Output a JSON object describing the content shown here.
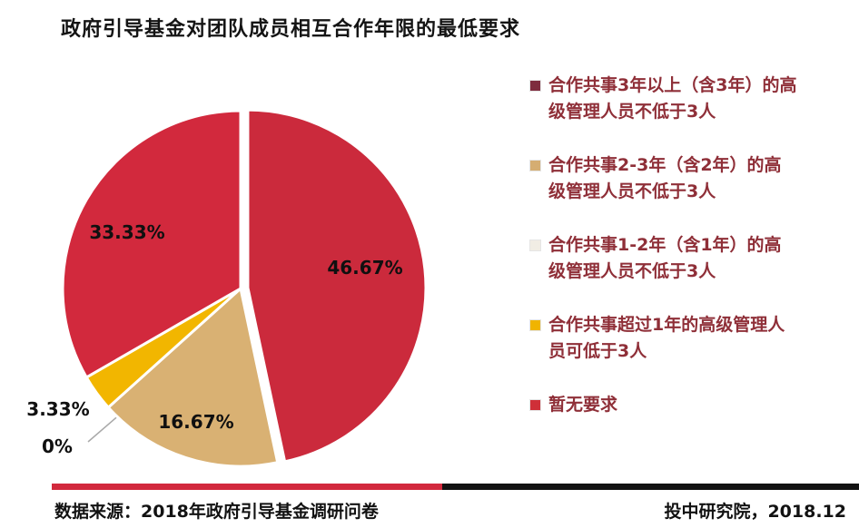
{
  "title": "政府引导基金对团队成员相互合作年限的最低要求",
  "chart_data": {
    "type": "pie",
    "title": "政府引导基金对团队成员相互合作年限的最低要求",
    "direction": "clockwise",
    "start_angle_deg_from_top": 0,
    "exploded_slice": 0,
    "slices": [
      {
        "label": "合作共事3年以上（含3年）的高级管理人员不低于3人",
        "value": 46.67,
        "display": "46.67%",
        "color": "#cb2a3c",
        "marker_color": "#7e2c3e"
      },
      {
        "label": "合作共事2-3年（含2年）的高级管理人员不低于3人",
        "value": 16.67,
        "display": "16.67%",
        "color": "#d9b173",
        "marker_color": "#d5ad72"
      },
      {
        "label": "合作共事1-2年（含1年）的高级管理人员不低于3人",
        "value": 0,
        "display": "0%",
        "color": "#f3f0ea",
        "marker_color": "#f1ede4"
      },
      {
        "label": "合作共事超过1年的高级管理人员可低于3人",
        "value": 3.33,
        "display": "3.33%",
        "color": "#f2b600",
        "marker_color": "#f0b400"
      },
      {
        "label": "暂无要求",
        "value": 33.33,
        "display": "33.33%",
        "color": "#d2293d",
        "marker_color": "#cf2f38"
      }
    ]
  },
  "footer": {
    "source": "数据来源：2018年政府引导基金调研问卷",
    "credit": "投中研究院，2018.12",
    "bar_red_color": "#d2293d",
    "bar_black_color": "#121212"
  }
}
